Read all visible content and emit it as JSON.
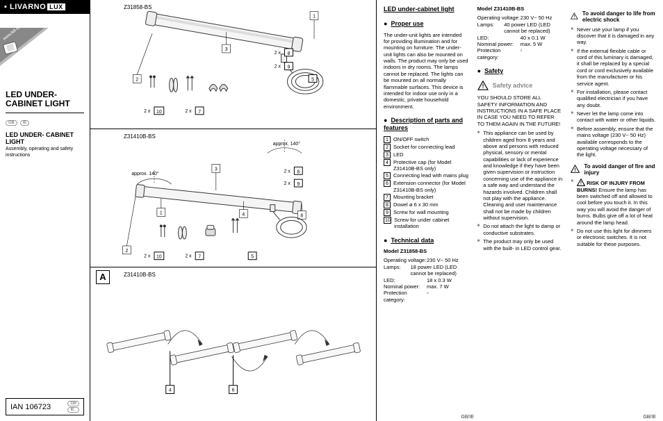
{
  "brand": {
    "name": "LIVARNO",
    "suffix": "LUX",
    "badge_url": "www.lidl-service.com"
  },
  "left": {
    "title": "LED UNDER- CABINET LIGHT",
    "flags": [
      "GB",
      "IE"
    ],
    "subtitle": "LED UNDER- CABINET LIGHT",
    "subtext": "Assembly, operating and safety instructions",
    "ian": "IAN 106723"
  },
  "diagrams": {
    "panel1": {
      "model": "Z31858-BS",
      "callouts": [
        "1",
        "3",
        "8",
        "9",
        "5",
        "2",
        "10",
        "7"
      ],
      "qty8": "2 x",
      "qty9": "2 x",
      "qty10": "2 x",
      "qty7": "2 x"
    },
    "panel2": {
      "model": "Z31410B-BS",
      "approx": "approx. 140°",
      "callouts": [
        "3",
        "8",
        "9",
        "1",
        "4",
        "6",
        "2",
        "10",
        "7",
        "5"
      ],
      "qty8": "2 x",
      "qty9": "2 x",
      "qty10": "2 x",
      "qty7": "2 x"
    },
    "panel3": {
      "letter": "A",
      "model": "Z31410B-BS",
      "callouts": [
        "4",
        "6"
      ]
    }
  },
  "text": {
    "h_main": "LED under-cabinet light",
    "h_proper": "Proper use",
    "proper_body": "The under-unit lights are intended for providing illumination and for mounting on furniture. The under-unit lights can also be mounted on walls. The product may only be used indoors in dry rooms. The lamps cannot be replaced. The lights can be mounted on all normally flammable surfaces. This device is intended for indoor use only in a domestic, private household environment.",
    "h_parts": "Description of parts and features",
    "parts": [
      {
        "n": "1",
        "t": "ON/OFF switch"
      },
      {
        "n": "2",
        "t": "Socket for connecting lead"
      },
      {
        "n": "3",
        "t": "LED"
      },
      {
        "n": "4",
        "t": "Protective cap (for Model Z31410B-BS only)"
      },
      {
        "n": "5",
        "t": "Connecting lead with mains plug"
      },
      {
        "n": "6",
        "t": "Extension connector (for Model Z31410B-BS only)"
      },
      {
        "n": "7",
        "t": "Mounting bracket"
      },
      {
        "n": "8",
        "t": "Dowel ø 6 x 30 mm"
      },
      {
        "n": "9",
        "t": "Screw for wall mounting"
      },
      {
        "n": "10",
        "t": "Screw for under cabinet installation"
      }
    ],
    "h_tech": "Technical data",
    "model1": {
      "name": "Model Z31858-BS",
      "rows": [
        {
          "k": "Operating voltage:",
          "v": "230 V~ 50 Hz"
        },
        {
          "k": "Lamps:",
          "v": "18 power LED (LED cannot be replaced)"
        },
        {
          "k": "LED:",
          "v": "18 x 0.3 W"
        },
        {
          "k": "Nominal power:",
          "v": "max. 7 W"
        },
        {
          "k": "Protection category:",
          "v": "▫"
        }
      ]
    },
    "model2": {
      "name": "Model Z31410B-BS",
      "rows": [
        {
          "k": "Operating voltage:",
          "v": "230 V~ 50 Hz"
        },
        {
          "k": "Lamps:",
          "v": "40 power LED (LED cannot be replaced)"
        },
        {
          "k": "LED:",
          "v": "40 x 0.1 W"
        },
        {
          "k": "Nominal power:",
          "v": "max. 5 W"
        },
        {
          "k": "Protection category:",
          "v": "▫"
        }
      ]
    },
    "h_safety": "Safety",
    "safety_advice": "Safety advice",
    "safety_caps": "YOU SHOULD STORE ALL SAFETY INFORMATION AND INSTRUCTIONS IN A SAFE PLACE IN CASE YOU NEED TO REFER TO THEM AGAIN IN THE FUTURE!",
    "safety_list": [
      "This appliance can be used by children aged from 8 years and above and persons with reduced physical, sensory or mental capabilities or lack of experience and knowledge if they have been given supervision or instruction concerning use of the appliance in a safe way and understand the hazards involved. Children shall not play with the appliance. Cleaning and user maintenance shall not be made by children without supervision.",
      "Do not attach the light to damp or conductive substrates.",
      "The product may only be used with the built- in LED control gear."
    ],
    "h_shock": "To avoid danger to life from electric shock",
    "shock_list": [
      "Never use your lamp if you discover that it is damaged in any way.",
      "If the external flexible cable or cord of this luminary is damaged, it shall be replaced by a special cord or cord exclusively available from the manufacturer or his service agent.",
      "For installation, please contact qualified electrician if you have any doubt.",
      "Never let the lamp come into contact with water or other liquids.",
      "Before assembly, ensure that the mains voltage (230 V~ 50 Hz) available corresponds to the operating voltage necessary of the light."
    ],
    "h_fire": "To avoid danger of fire and injury",
    "risk_burns_head": "RISK OF INJURY FROM BURNS!",
    "risk_burns_body": "Ensure the lamp has been switched off and allowed to cool before you touch it. In this way you will avoid the danger of burns. Bulbs give off a lot of heat around the lamp head.",
    "fire_list2": "Do not use this light for dimmers or electronic switches. It is not suitable for these purposes.",
    "footer": "GB/IE"
  }
}
